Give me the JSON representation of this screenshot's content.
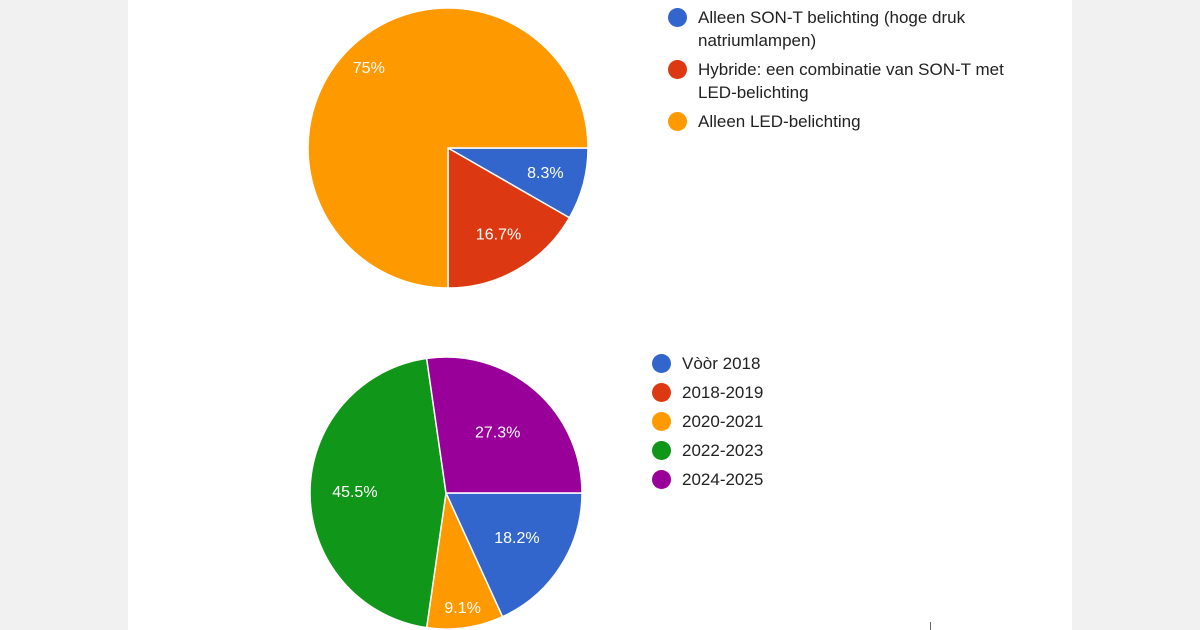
{
  "chart_data": [
    {
      "type": "pie",
      "title": "",
      "legend_position": "right",
      "slices": [
        {
          "label": "Alleen SON-T belichting (hoge druk natriumlampen)",
          "value": 8.3,
          "value_label": "8.3%",
          "color": "#3366cc"
        },
        {
          "label": "Hybride: een combinatie van SON-T met LED-belichting",
          "value": 16.7,
          "value_label": "16.7%",
          "color": "#dc3912"
        },
        {
          "label": "Alleen LED-belichting",
          "value": 75,
          "value_label": "75%",
          "color": "#ff9900"
        }
      ]
    },
    {
      "type": "pie",
      "title": "",
      "legend_position": "right",
      "slices": [
        {
          "label": "Vòòr 2018",
          "value": 18.2,
          "value_label": "18.2%",
          "color": "#3366cc"
        },
        {
          "label": "2018-2019",
          "value": 0,
          "value_label": "",
          "color": "#dc3912"
        },
        {
          "label": "2020-2021",
          "value": 9.1,
          "value_label": "9.1%",
          "color": "#ff9900"
        },
        {
          "label": "2022-2023",
          "value": 45.5,
          "value_label": "45.5%",
          "color": "#109618"
        },
        {
          "label": "2024-2025",
          "value": 27.3,
          "value_label": "27.3%",
          "color": "#990099"
        }
      ]
    }
  ]
}
